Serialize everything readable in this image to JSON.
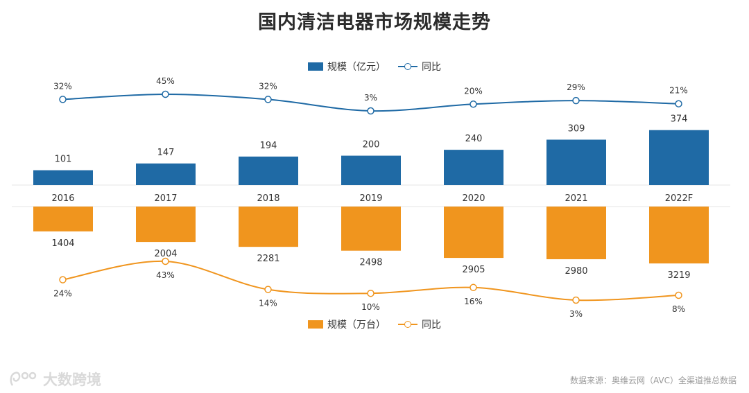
{
  "title": "国内清洁电器市场规模走势",
  "legend_top": {
    "bar_label": "规模（亿元）",
    "line_label": "同比"
  },
  "legend_bottom": {
    "bar_label": "规模（万台）",
    "line_label": "同比"
  },
  "colors": {
    "blue": "#1f6aa5",
    "orange": "#f0951e",
    "grid": "#e6e6e6"
  },
  "watermark": "大数跨境",
  "source": "数据来源：奥维云网（AVC）全渠道推总数据",
  "chart_data": [
    {
      "type": "bar",
      "title": "国内清洁电器市场规模走势",
      "name": "规模（亿元）",
      "categories": [
        "2016",
        "2017",
        "2018",
        "2019",
        "2020",
        "2021",
        "2022F"
      ],
      "values": [
        101,
        147,
        194,
        200,
        240,
        309,
        374
      ],
      "value_labels": [
        "101",
        "147",
        "194",
        "200",
        "240",
        "309",
        "374"
      ],
      "color": "#1f6aa5"
    },
    {
      "type": "line",
      "name": "同比",
      "categories": [
        "2016",
        "2017",
        "2018",
        "2019",
        "2020",
        "2021",
        "2022F"
      ],
      "values": [
        32,
        45,
        32,
        3,
        20,
        29,
        21
      ],
      "value_labels": [
        "32%",
        "45%",
        "32%",
        "3%",
        "20%",
        "29%",
        "21%"
      ],
      "color": "#1f6aa5"
    },
    {
      "type": "bar",
      "name": "规模（万台）",
      "categories": [
        "2016",
        "2017",
        "2018",
        "2019",
        "2020",
        "2021",
        "2022F"
      ],
      "values": [
        1404,
        2004,
        2281,
        2498,
        2905,
        2980,
        3219
      ],
      "value_labels": [
        "1404",
        "2004",
        "2281",
        "2498",
        "2905",
        "2980",
        "3219"
      ],
      "color": "#f0951e"
    },
    {
      "type": "line",
      "name": "同比",
      "categories": [
        "2016",
        "2017",
        "2018",
        "2019",
        "2020",
        "2021",
        "2022F"
      ],
      "values": [
        24,
        43,
        14,
        10,
        16,
        3,
        8
      ],
      "value_labels": [
        "24%",
        "43%",
        "14%",
        "10%",
        "16%",
        "3%",
        "8%"
      ],
      "color": "#f0951e"
    }
  ]
}
